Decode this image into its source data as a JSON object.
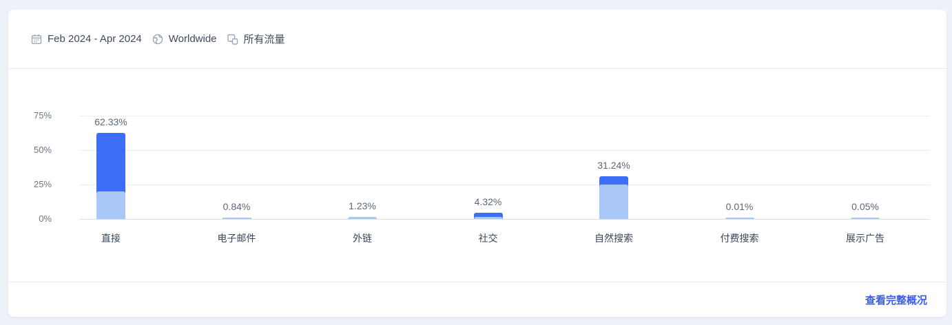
{
  "header": {
    "date_range": "Feb 2024 - Apr 2024",
    "region": "Worldwide",
    "traffic_label": "所有流量"
  },
  "footer": {
    "link_label": "查看完整概况"
  },
  "colors": {
    "primary_bar": "#3d6ef5",
    "secondary_bar": "#a9c7f9",
    "link": "#3b5bf6",
    "page_background": "#eef1f8",
    "card_background": "#ffffff"
  },
  "chart_data": {
    "type": "bar",
    "title": "",
    "xlabel": "",
    "ylabel": "",
    "categories": [
      "直接",
      "电子邮件",
      "外链",
      "社交",
      "自然搜索",
      "付费搜索",
      "展示广告"
    ],
    "series": [
      {
        "name": "primary",
        "color": "#3d6ef5",
        "values": [
          62.33,
          0.84,
          1.23,
          4.32,
          31.24,
          0.01,
          0.05
        ]
      },
      {
        "name": "secondary-overlay",
        "color": "#a9c7f9",
        "estimated": true,
        "values": [
          20,
          1,
          1.5,
          1.5,
          25,
          1,
          1
        ]
      }
    ],
    "value_labels": [
      "62.33%",
      "0.84%",
      "1.23%",
      "4.32%",
      "31.24%",
      "0.01%",
      "0.05%"
    ],
    "y_ticks": [
      {
        "label": "75%",
        "value": 75
      },
      {
        "label": "50%",
        "value": 50
      },
      {
        "label": "25%",
        "value": 25
      },
      {
        "label": "0%",
        "value": 0
      }
    ],
    "ylim": [
      0,
      75
    ],
    "grid": true,
    "legend": "none"
  }
}
